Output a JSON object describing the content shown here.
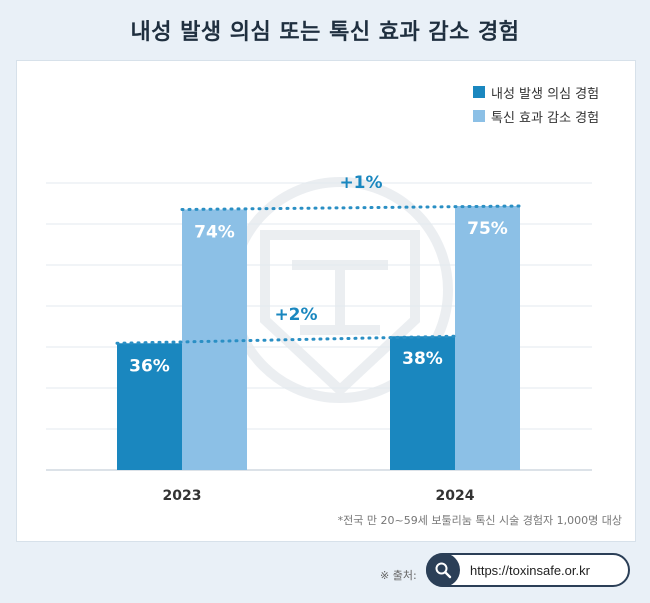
{
  "title": "내성 발생 의심 또는 톡신 효과 감소 경험",
  "chart_data": {
    "type": "bar",
    "categories": [
      "2023",
      "2024"
    ],
    "series": [
      {
        "name": "내성 발생 의심 경험",
        "values": [
          36,
          38
        ],
        "color": "#1a87bf"
      },
      {
        "name": "톡신 효과 감소 경험",
        "values": [
          74,
          75
        ],
        "color": "#8cc0e6"
      }
    ],
    "value_labels": {
      "내성 발생 의심 경험": [
        "36%",
        "38%"
      ],
      "톡신 효과 감소 경험": [
        "74%",
        "75%"
      ]
    },
    "annotations": [
      {
        "text": "+1%",
        "series": "톡신 효과 감소 경험"
      },
      {
        "text": "+2%",
        "series": "내성 발생 의심 경험"
      }
    ],
    "ylim": [
      0,
      100
    ],
    "grid": true,
    "legend_position": "top-right"
  },
  "footnote": "*전국 만 20~59세 보툴리눔 톡신 시술 경험자 1,000명 대상",
  "source": {
    "label": "※ 출처:",
    "url": "https://toxinsafe.or.kr",
    "icon": "search-icon"
  }
}
